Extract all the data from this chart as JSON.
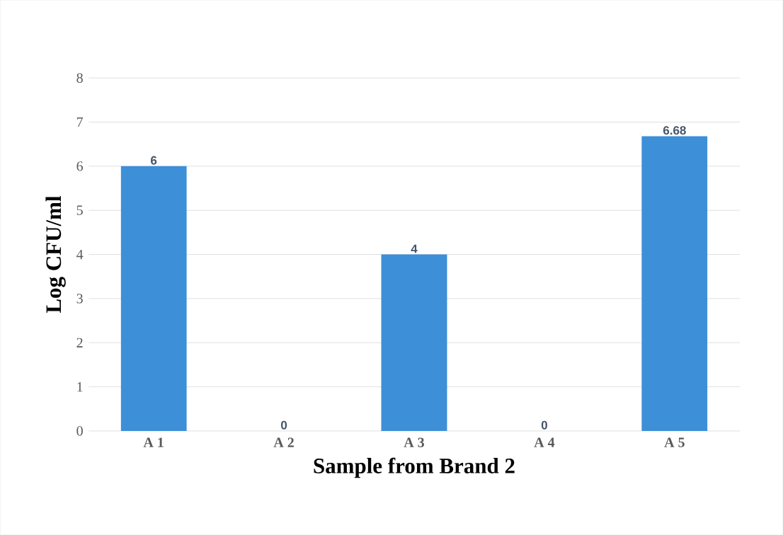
{
  "chart_data": {
    "type": "bar",
    "xlabel": "Sample from Brand 2",
    "ylabel": "Log CFU/ml",
    "categories": [
      "A 1",
      "A 2",
      "A 3",
      "A 4",
      "A 5"
    ],
    "values": [
      6,
      0,
      4,
      0,
      6.68
    ],
    "color": "#3d8fd8",
    "ylim": [
      0,
      8
    ],
    "yticks": [
      0,
      1,
      2,
      3,
      4,
      5,
      6,
      7,
      8
    ],
    "grid": "y",
    "data_labels": true
  }
}
